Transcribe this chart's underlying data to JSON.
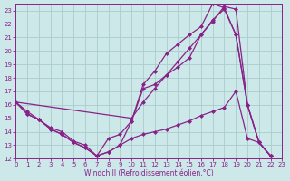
{
  "xlabel": "Windchill (Refroidissement éolien,°C)",
  "background_color": "#cce8e8",
  "grid_color": "#aacccc",
  "line_color": "#882288",
  "xlim": [
    0,
    23
  ],
  "ylim": [
    12,
    23.5
  ],
  "xticks": [
    0,
    1,
    2,
    3,
    4,
    5,
    6,
    7,
    8,
    9,
    10,
    11,
    12,
    13,
    14,
    15,
    16,
    17,
    18,
    19,
    20,
    21,
    22,
    23
  ],
  "yticks": [
    12,
    13,
    14,
    15,
    16,
    17,
    18,
    19,
    20,
    21,
    22,
    23
  ],
  "s1_x": [
    0,
    1,
    2,
    3,
    4,
    5,
    6,
    7,
    8,
    9,
    10,
    11,
    12,
    13,
    14,
    15,
    16,
    17,
    18,
    19,
    20,
    21,
    22
  ],
  "s1_y": [
    16.2,
    15.5,
    14.9,
    14.3,
    14.0,
    13.3,
    13.0,
    12.2,
    13.5,
    13.8,
    14.8,
    17.2,
    17.5,
    18.2,
    18.8,
    19.5,
    21.2,
    22.2,
    23.3,
    23.1,
    16.0,
    13.2,
    12.2
  ],
  "s2_x": [
    0,
    10,
    11,
    12,
    13,
    14,
    15,
    16,
    17,
    18,
    19,
    20,
    21,
    22
  ],
  "s2_y": [
    16.2,
    15.0,
    16.2,
    17.2,
    18.2,
    19.2,
    20.2,
    21.2,
    22.3,
    23.1,
    21.2,
    16.0,
    13.2,
    12.2
  ],
  "s3_x": [
    0,
    1,
    2,
    3,
    4,
    5,
    6,
    7,
    8,
    9,
    10,
    11,
    12,
    13,
    14,
    15,
    16,
    17,
    18,
    19,
    20,
    21,
    22
  ],
  "s3_y": [
    16.2,
    15.3,
    14.9,
    14.2,
    13.8,
    13.2,
    12.8,
    12.2,
    12.5,
    13.0,
    14.8,
    17.5,
    18.5,
    19.8,
    20.5,
    21.2,
    21.8,
    23.5,
    23.2,
    21.2,
    16.0,
    13.2,
    12.2
  ],
  "s4_x": [
    0,
    1,
    2,
    3,
    4,
    5,
    6,
    7,
    8,
    9,
    10,
    11,
    12,
    13,
    14,
    15,
    16,
    17,
    18,
    19,
    20,
    21,
    22
  ],
  "s4_y": [
    16.2,
    15.3,
    14.9,
    14.2,
    13.8,
    13.2,
    12.8,
    12.2,
    12.5,
    13.0,
    13.5,
    13.8,
    14.0,
    14.2,
    14.5,
    14.8,
    15.2,
    15.5,
    15.8,
    17.0,
    13.5,
    13.2,
    12.2
  ]
}
